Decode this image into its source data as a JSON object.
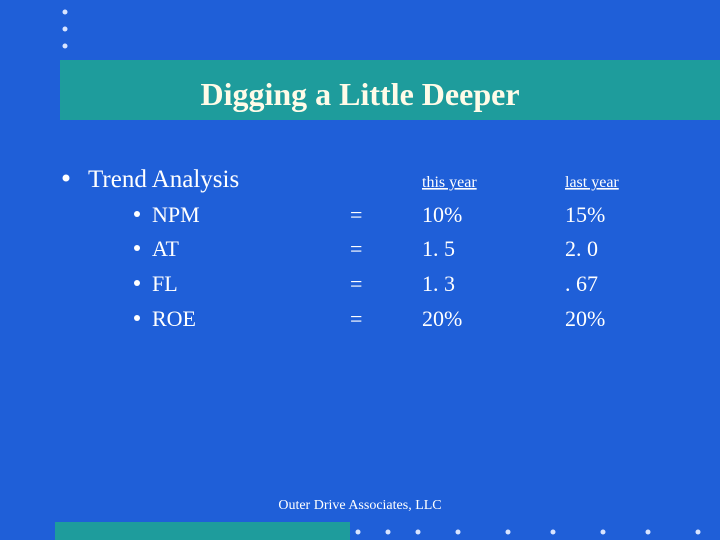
{
  "header": {
    "title": "Digging a Little Deeper"
  },
  "section": {
    "label": "Trend Analysis"
  },
  "table": {
    "columns": [
      "this year",
      "last year"
    ],
    "rows": [
      [
        "NPM",
        "=",
        "10%",
        "15%"
      ],
      [
        "AT",
        "=",
        "1. 5",
        "2. 0"
      ],
      [
        "FL",
        "=",
        "1. 3",
        ". 67"
      ],
      [
        "ROE",
        "=",
        "20%",
        "20%"
      ]
    ]
  },
  "footer": {
    "text": "Outer Drive Associates, LLC"
  }
}
